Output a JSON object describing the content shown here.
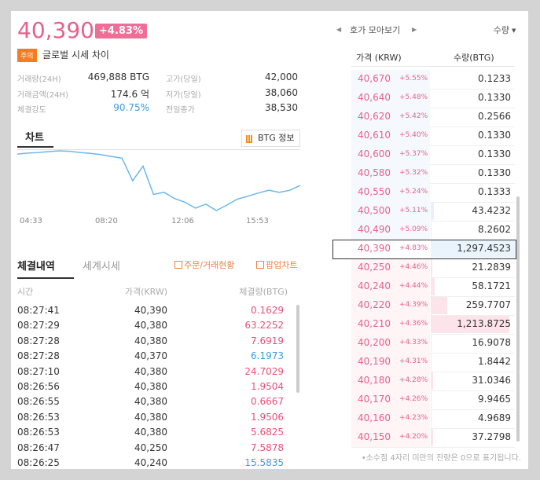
{
  "header": {
    "price": "40,390",
    "change": "+4.83%",
    "warning_badge": "주의",
    "warning_text": "글로벌 시세 차이"
  },
  "stats": [
    {
      "label": "거래량(24H)",
      "value": "469,888 BTG"
    },
    {
      "label": "고가(당일)",
      "value": "42,000"
    },
    {
      "label": "거래금액(24H)",
      "value": "174.6 억"
    },
    {
      "label": "저가(당일)",
      "value": "38,060"
    },
    {
      "label": "체결강도",
      "value": "90.75%",
      "color": "#3d9be0"
    },
    {
      "label": "전일종가",
      "value": "38,530"
    }
  ],
  "chart_tab": "차트",
  "info_button": "BTG 정보",
  "chart_data": {
    "type": "line",
    "x_labels": [
      "04:33",
      "08:20",
      "12:06",
      "15:53"
    ],
    "color": "#6bb8ec",
    "values": [
      41740,
      41800,
      41840,
      41900,
      41950,
      41920,
      41840,
      41780,
      41700,
      41580,
      41475,
      40000,
      40950,
      39110,
      39250,
      38850,
      38600,
      38220,
      38480,
      38060,
      38420,
      38800,
      38990,
      39200,
      39380,
      39250,
      39380,
      39700
    ]
  },
  "trade_tabs": [
    "체결내역",
    "세계시세"
  ],
  "trade_links": [
    "주문/거래현황",
    "팝업차트"
  ],
  "trade_headers": [
    "시간",
    "가격(KRW)",
    "체결량(BTG)"
  ],
  "trades": [
    [
      "08:27:41",
      "40,390",
      "0.1629",
      "#e8507a"
    ],
    [
      "08:27:29",
      "40,380",
      "63.2252",
      "#e8507a"
    ],
    [
      "08:27:28",
      "40,380",
      "7.6919",
      "#e8507a"
    ],
    [
      "08:27:28",
      "40,370",
      "6.1973",
      "#3d9be0"
    ],
    [
      "08:27:10",
      "40,380",
      "24.7029",
      "#e8507a"
    ],
    [
      "08:26:56",
      "40,380",
      "1.9504",
      "#e8507a"
    ],
    [
      "08:26:55",
      "40,380",
      "0.6667",
      "#e8507a"
    ],
    [
      "08:26:53",
      "40,380",
      "1.9506",
      "#e8507a"
    ],
    [
      "08:26:53",
      "40,380",
      "5.6825",
      "#e8507a"
    ],
    [
      "08:26:47",
      "40,250",
      "7.5878",
      "#e8507a"
    ],
    [
      "08:26:25",
      "40,240",
      "15.5835",
      "#3d9be0"
    ]
  ],
  "book_title": "호가 모아보기",
  "book_sort": "수량",
  "book_headers": [
    "가격 (KRW)",
    "수량(BTG)"
  ],
  "book": [
    [
      "40,670",
      "+5.55%",
      "0.1233"
    ],
    [
      "40,640",
      "+5.48%",
      "0.1330"
    ],
    [
      "40,620",
      "+5.42%",
      "0.2566"
    ],
    [
      "40,610",
      "+5.40%",
      "0.1330"
    ],
    [
      "40,600",
      "+5.37%",
      "0.1330"
    ],
    [
      "40,580",
      "+5.32%",
      "0.1330"
    ],
    [
      "40,550",
      "+5.24%",
      "0.1333"
    ],
    [
      "40,500",
      "+5.11%",
      "43.4232"
    ],
    [
      "40,490",
      "+5.09%",
      "8.2602"
    ],
    [
      "40,390",
      "+4.83%",
      "1,297.4523"
    ],
    [
      "40,250",
      "+4.46%",
      "21.2839"
    ],
    [
      "40,240",
      "+4.44%",
      "58.1721"
    ],
    [
      "40,220",
      "+4.39%",
      "259.7707"
    ],
    [
      "40,210",
      "+4.36%",
      "1,213.8725"
    ],
    [
      "40,200",
      "+4.33%",
      "16.9078"
    ],
    [
      "40,190",
      "+4.31%",
      "1.8442"
    ],
    [
      "40,180",
      "+4.28%",
      "31.0346"
    ],
    [
      "40,170",
      "+4.26%",
      "9.9465"
    ],
    [
      "40,160",
      "+4.23%",
      "4.9689"
    ],
    [
      "40,150",
      "+4.20%",
      "37.2798"
    ]
  ],
  "book_current_index": 9,
  "footnote": "•소수점 4자리 미만의 잔량은 0으로 표기됩니다."
}
